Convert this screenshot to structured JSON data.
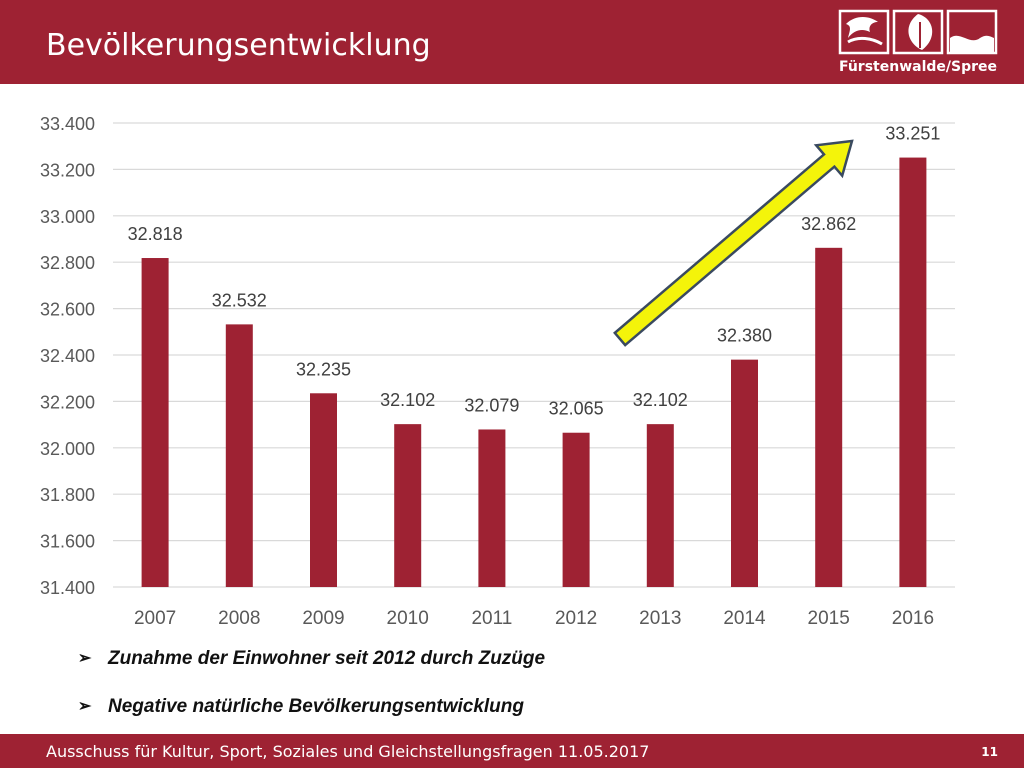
{
  "header": {
    "title": "Bevölkerungsentwicklung",
    "logo_text": "Fürstenwalde/Spree"
  },
  "colors": {
    "brand": "#9e2233",
    "bar": "#9e2233",
    "arrow": "#f4f40a"
  },
  "chart_data": {
    "type": "bar",
    "categories": [
      "2007",
      "2008",
      "2009",
      "2010",
      "2011",
      "2012",
      "2013",
      "2014",
      "2015",
      "2016"
    ],
    "values": [
      32818,
      32532,
      32235,
      32102,
      32079,
      32065,
      32102,
      32380,
      32862,
      33251
    ],
    "value_labels": [
      "32.818",
      "32.532",
      "32.235",
      "32.102",
      "32.079",
      "32.065",
      "32.102",
      "32.380",
      "32.862",
      "33.251"
    ],
    "yticks": [
      31400,
      31600,
      31800,
      32000,
      32200,
      32400,
      32600,
      32800,
      33000,
      33200,
      33400
    ],
    "ytick_labels": [
      "31.400",
      "31.600",
      "31.800",
      "32.000",
      "32.200",
      "32.400",
      "32.600",
      "32.800",
      "33.000",
      "33.200",
      "33.400"
    ],
    "ylim": [
      31400,
      33400
    ],
    "grid": true,
    "title": "",
    "xlabel": "",
    "ylabel": "",
    "annotation": {
      "type": "arrow",
      "from_category": "2013",
      "to_category": "2016",
      "meaning": "upward trend"
    }
  },
  "bullets": [
    "Zunahme der Einwohner seit 2012 durch Zuzüge",
    "Negative natürliche Bevölkerungsentwicklung"
  ],
  "bullet_icon": "arrow-bullet-icon",
  "footer": {
    "text": "Ausschuss für Kultur, Sport, Soziales und Gleichstellungsfragen 11.05.2017",
    "page": "11"
  }
}
